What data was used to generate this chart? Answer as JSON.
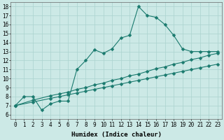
{
  "xlabel": "Humidex (Indice chaleur)",
  "xlim": [
    -0.5,
    23.5
  ],
  "ylim": [
    5.5,
    18.5
  ],
  "xticks": [
    0,
    1,
    2,
    3,
    4,
    5,
    6,
    7,
    8,
    9,
    10,
    11,
    12,
    13,
    14,
    15,
    16,
    17,
    18,
    19,
    20,
    21,
    22,
    23
  ],
  "yticks": [
    6,
    7,
    8,
    9,
    10,
    11,
    12,
    13,
    14,
    15,
    16,
    17,
    18
  ],
  "background_color": "#cce9e6",
  "grid_color": "#aad3cf",
  "line_color": "#1a7a6e",
  "line_main_x": [
    0,
    1,
    2,
    3,
    4,
    5,
    6,
    7,
    8,
    9,
    10,
    11,
    12,
    13,
    14,
    15,
    16,
    17,
    18,
    19,
    20,
    21,
    22,
    23
  ],
  "line_main_y": [
    7.0,
    8.0,
    8.0,
    6.5,
    7.2,
    7.5,
    7.5,
    11.0,
    12.0,
    13.2,
    12.8,
    13.3,
    14.5,
    14.8,
    18.0,
    17.0,
    16.8,
    16.0,
    14.8,
    13.3,
    13.0,
    13.0,
    13.0,
    13.0
  ],
  "line_diag1_x": [
    0,
    2,
    4,
    5,
    6,
    7,
    8,
    9,
    10,
    11,
    12,
    13,
    14,
    15,
    16,
    17,
    18,
    19,
    20,
    21,
    22,
    23
  ],
  "line_diag1_y": [
    7.0,
    7.6,
    8.1,
    8.3,
    8.5,
    8.8,
    9.0,
    9.3,
    9.5,
    9.8,
    10.0,
    10.3,
    10.5,
    10.8,
    11.1,
    11.3,
    11.6,
    11.8,
    12.1,
    12.3,
    12.6,
    12.8
  ],
  "line_diag2_x": [
    0,
    2,
    4,
    5,
    6,
    7,
    8,
    9,
    10,
    11,
    12,
    13,
    14,
    15,
    16,
    17,
    18,
    19,
    20,
    21,
    22,
    23
  ],
  "line_diag2_y": [
    7.0,
    7.4,
    7.8,
    8.0,
    8.2,
    8.4,
    8.6,
    8.8,
    9.0,
    9.2,
    9.4,
    9.6,
    9.8,
    10.0,
    10.2,
    10.4,
    10.6,
    10.8,
    11.0,
    11.2,
    11.4,
    11.6
  ],
  "marker_size": 2.5,
  "linewidth": 0.8,
  "tick_fontsize": 5.5,
  "xlabel_fontsize": 6.5
}
